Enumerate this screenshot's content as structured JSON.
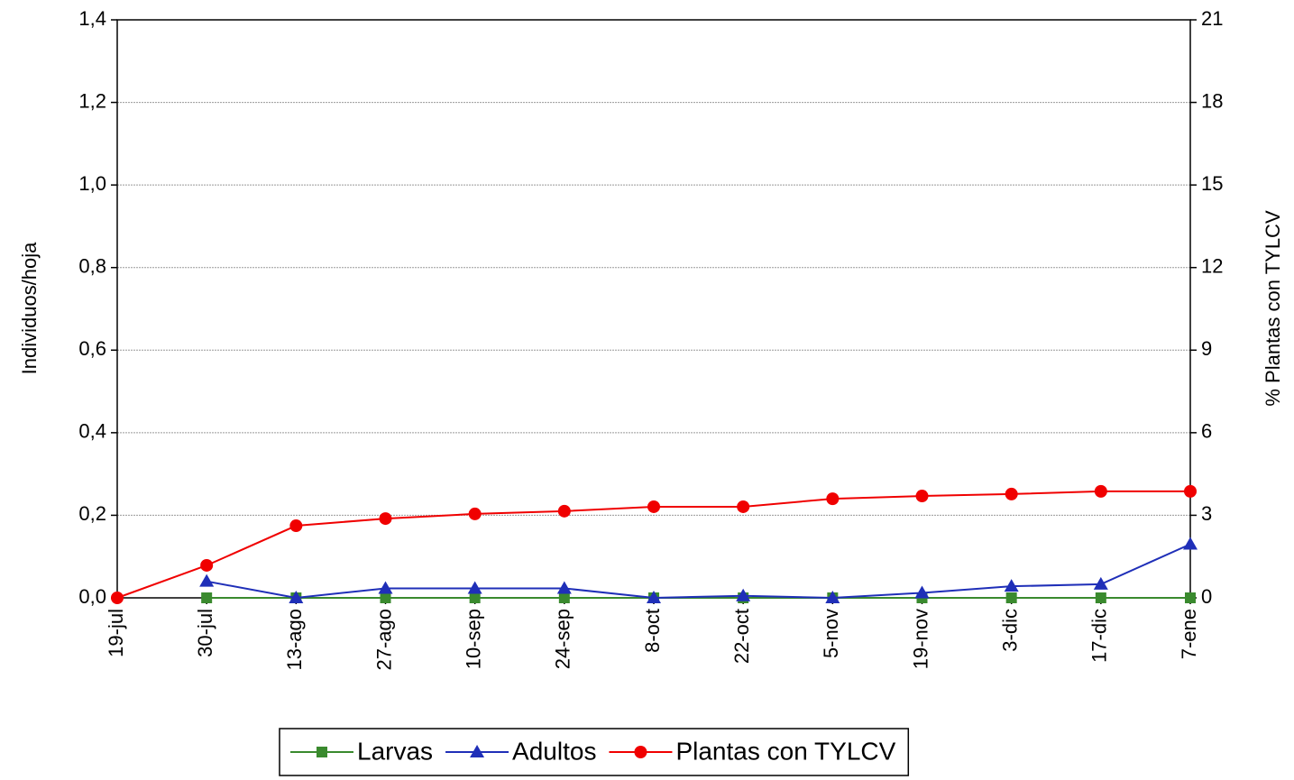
{
  "chart_data": {
    "type": "line",
    "categories": [
      "19-jul",
      "30-jul",
      "13-ago",
      "27-ago",
      "10-sep",
      "24-sep",
      "8-oct",
      "22-oct",
      "5-nov",
      "19-nov",
      "3-dic",
      "17-dic",
      "7-ene"
    ],
    "y_label": "Individuos/hoja",
    "y2_label": "% Plantas con TYLCV",
    "ylim": [
      0,
      1.4
    ],
    "yticks": [
      {
        "value": 0,
        "label": "0,0"
      },
      {
        "value": 0.2,
        "label": "0,2"
      },
      {
        "value": 0.4,
        "label": "0,4"
      },
      {
        "value": 0.6,
        "label": "0,6"
      },
      {
        "value": 0.8,
        "label": "0,8"
      },
      {
        "value": 1.0,
        "label": "1,0"
      },
      {
        "value": 1.2,
        "label": "1,2"
      },
      {
        "value": 1.4,
        "label": "1,4"
      }
    ],
    "y2lim": [
      0,
      21
    ],
    "y2ticks": [
      0,
      3,
      6,
      9,
      12,
      15,
      18,
      21
    ],
    "grid": true,
    "legend": "bottom",
    "series": [
      {
        "name": "Larvas",
        "color": "#3a8a2e",
        "marker": "square",
        "axis": "y",
        "values": [
          null,
          0,
          0,
          0,
          0,
          0,
          0,
          0,
          0,
          0,
          0,
          0,
          0
        ]
      },
      {
        "name": "Adultos",
        "color": "#1f2fb8",
        "marker": "triangle",
        "axis": "y",
        "values": [
          null,
          0.04,
          0,
          0.023,
          0.023,
          0.023,
          0,
          0.005,
          0,
          0.012,
          0.028,
          0.033,
          0.13
        ]
      },
      {
        "name": "Plantas con TYLCV",
        "color": "#f00000",
        "marker": "circle",
        "axis": "y2",
        "values": [
          0,
          1.18,
          2.62,
          2.88,
          3.05,
          3.15,
          3.31,
          3.31,
          3.6,
          3.7,
          3.77,
          3.87,
          3.87
        ]
      }
    ]
  }
}
